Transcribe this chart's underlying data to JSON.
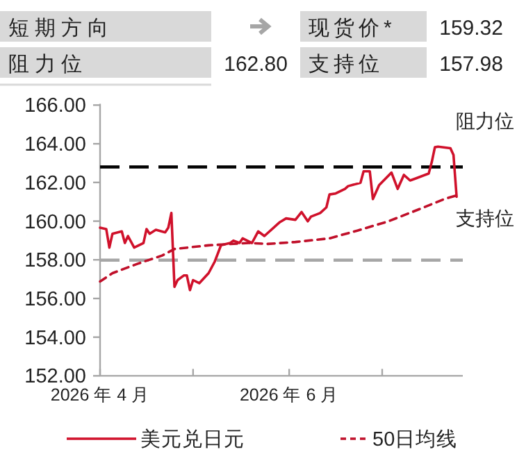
{
  "chart_data": {
    "type": "line",
    "annotations": [
      "短期方向",
      "现货价*",
      "159.32",
      "阻力位",
      "162.80",
      "支持位",
      "157.98"
    ],
    "xlim": [
      "2026-04-01",
      "2026-07-27"
    ],
    "xticks": [
      {
        "value": "2026-04-01",
        "label": "2026 年 4 月"
      },
      {
        "value": "2026-05-01",
        "label": null
      },
      {
        "value": "2026-06-01",
        "label": "2026 年 6 月"
      },
      {
        "value": "2026-07-01",
        "label": null
      }
    ],
    "ylim": [
      152,
      166
    ],
    "yticks": [
      {
        "value": 152,
        "label": "152.00"
      },
      {
        "value": 154,
        "label": "154.00"
      },
      {
        "value": 156,
        "label": "156.00"
      },
      {
        "value": 158,
        "label": "158.00"
      },
      {
        "value": 160,
        "label": "160.00"
      },
      {
        "value": 162,
        "label": "162.00"
      },
      {
        "value": 164,
        "label": "164.00"
      },
      {
        "value": 166,
        "label": "166.00"
      }
    ],
    "grid": false,
    "legend": "bottom",
    "ref_lines": [
      {
        "axis": "y",
        "value": 162.8,
        "label": "阻力位",
        "color": "#000000",
        "line_style": "dashed"
      },
      {
        "axis": "y",
        "value": 157.98,
        "label": "支持位",
        "color": "#a6a6a6",
        "line_style": "dashed"
      }
    ],
    "series": [
      {
        "name": "美元兑日元",
        "color": "#d0112b",
        "line_style": "solid",
        "x": [
          "2026-04-01",
          "2026-04-03",
          "2026-04-04",
          "2026-04-05",
          "2026-04-08",
          "2026-04-09",
          "2026-04-10",
          "2026-04-12",
          "2026-04-15",
          "2026-04-16",
          "2026-04-17",
          "2026-04-19",
          "2026-04-22",
          "2026-04-23",
          "2026-04-24",
          "2026-04-25",
          "2026-04-26",
          "2026-04-28",
          "2026-04-29",
          "2026-04-30",
          "2026-05-01",
          "2026-05-03",
          "2026-05-06",
          "2026-05-08",
          "2026-05-10",
          "2026-05-13",
          "2026-05-14",
          "2026-05-16",
          "2026-05-17",
          "2026-05-20",
          "2026-05-22",
          "2026-05-24",
          "2026-05-29",
          "2026-05-31",
          "2026-06-03",
          "2026-06-05",
          "2026-06-07",
          "2026-06-08",
          "2026-06-11",
          "2026-06-13",
          "2026-06-14",
          "2026-06-16",
          "2026-06-19",
          "2026-06-20",
          "2026-06-24",
          "2026-06-25",
          "2026-06-27",
          "2026-06-28",
          "2026-06-30",
          "2026-07-04",
          "2026-07-06",
          "2026-07-08",
          "2026-07-10",
          "2026-07-12",
          "2026-07-16",
          "2026-07-17",
          "2026-07-18",
          "2026-07-19",
          "2026-07-23",
          "2026-07-24",
          "2026-07-25"
        ],
        "values": [
          159.66,
          159.59,
          158.63,
          159.35,
          159.47,
          158.87,
          159.23,
          158.63,
          158.87,
          159.59,
          159.35,
          159.55,
          159.42,
          159.66,
          160.42,
          156.6,
          156.95,
          157.19,
          157.19,
          156.43,
          156.95,
          156.79,
          157.31,
          157.91,
          158.75,
          158.87,
          158.99,
          158.87,
          159.11,
          158.87,
          159.47,
          159.23,
          159.95,
          160.14,
          160.07,
          160.47,
          159.99,
          160.23,
          160.42,
          160.71,
          161.38,
          161.43,
          161.67,
          161.81,
          161.98,
          162.58,
          162.58,
          161.14,
          161.86,
          162.51,
          161.67,
          162.39,
          162.1,
          162.22,
          162.46,
          163.06,
          163.82,
          163.85,
          163.77,
          163.42,
          161.26
        ]
      },
      {
        "name": "50日均线",
        "color": "#c0102a",
        "line_style": "dashed",
        "x": [
          "2026-04-01",
          "2026-04-05",
          "2026-04-13",
          "2026-04-21",
          "2026-04-25",
          "2026-05-06",
          "2026-05-19",
          "2026-05-25",
          "2026-06-03",
          "2026-06-14",
          "2026-06-23",
          "2026-07-03",
          "2026-07-13",
          "2026-07-21",
          "2026-07-26"
        ],
        "values": [
          156.88,
          157.31,
          157.79,
          158.22,
          158.56,
          158.75,
          158.87,
          158.82,
          158.92,
          159.11,
          159.51,
          159.99,
          160.62,
          161.14,
          161.38
        ]
      }
    ]
  }
}
